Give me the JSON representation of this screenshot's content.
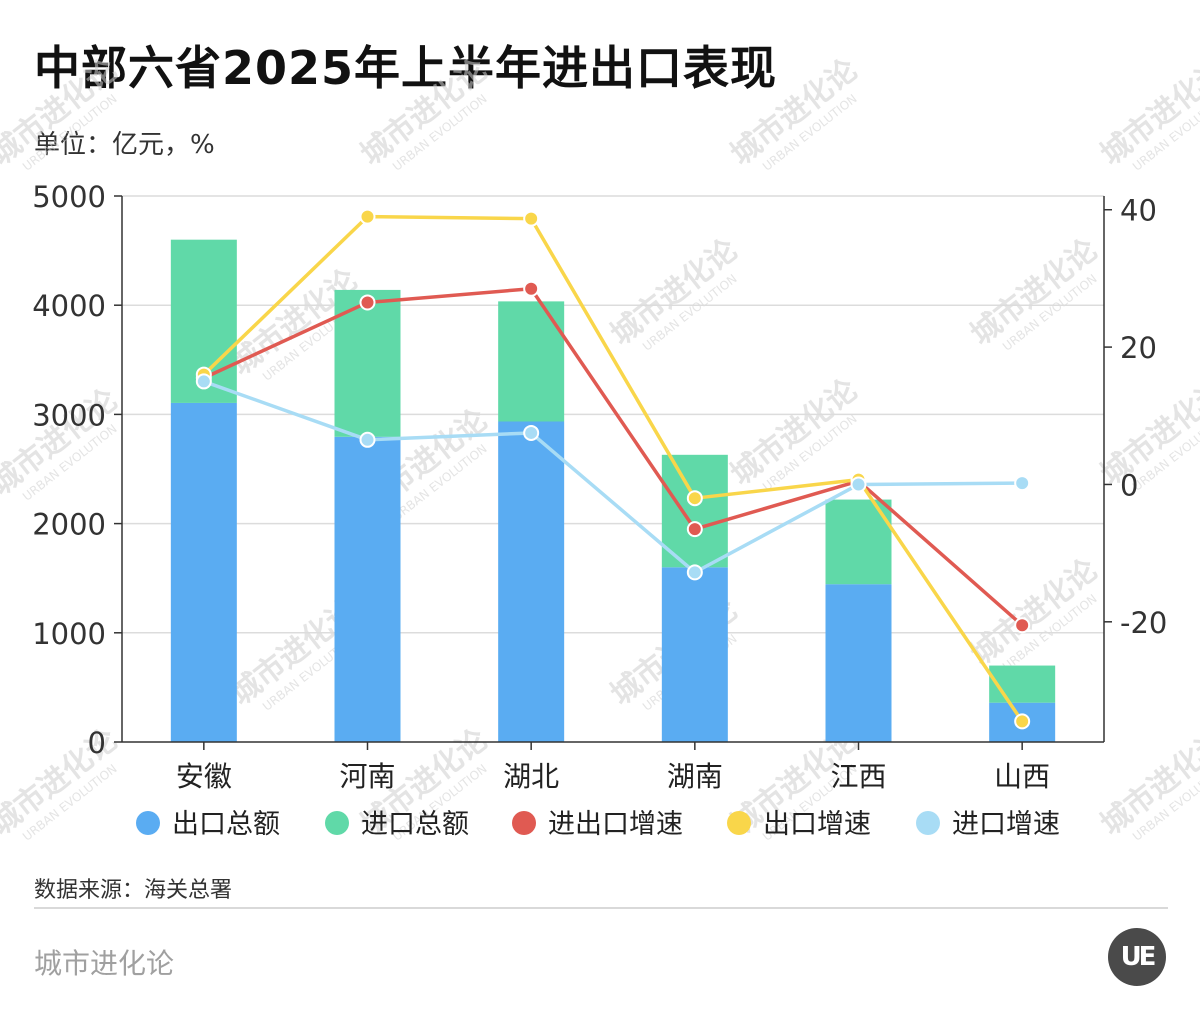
{
  "title": "中部六省2025年上半年进出口表现",
  "unit_label": "单位：亿元，%",
  "source": "数据来源：海关总署",
  "brand": "城市进化论",
  "logo_text": "UE",
  "watermark": {
    "cn": "城市进化论",
    "en": "URBAN EVOLUTION"
  },
  "chart_data": {
    "type": "bar",
    "categories": [
      "安徽",
      "河南",
      "湖北",
      "湖南",
      "江西",
      "山西"
    ],
    "y_left": {
      "min": 0,
      "max": 5000,
      "ticks": [
        0,
        1000,
        2000,
        3000,
        4000,
        5000
      ]
    },
    "y_right": {
      "min": -37.5,
      "max": 42,
      "ticks": [
        -20,
        0,
        20,
        40
      ]
    },
    "bar_series": [
      {
        "name": "出口总额",
        "color": "#5aacf2",
        "values": [
          3105,
          2795,
          2935,
          1600,
          1445,
          360
        ]
      },
      {
        "name": "进口总额",
        "color": "#60d9a8",
        "values": [
          1495,
          1345,
          1100,
          1030,
          775,
          340
        ]
      }
    ],
    "line_series": [
      {
        "name": "进出口增速",
        "color": "#e05a52",
        "values": [
          15.5,
          26.5,
          28.5,
          -6.5,
          0.5,
          -20.5
        ]
      },
      {
        "name": "出口增速",
        "color": "#f9d64a",
        "values": [
          16.0,
          39.0,
          38.7,
          -2.0,
          0.7,
          -34.5
        ]
      },
      {
        "name": "进口增速",
        "color": "#a8dcf5",
        "values": [
          15.0,
          6.5,
          7.5,
          -12.8,
          0.0,
          0.2
        ]
      }
    ],
    "grid": true,
    "legend_position": "bottom"
  }
}
